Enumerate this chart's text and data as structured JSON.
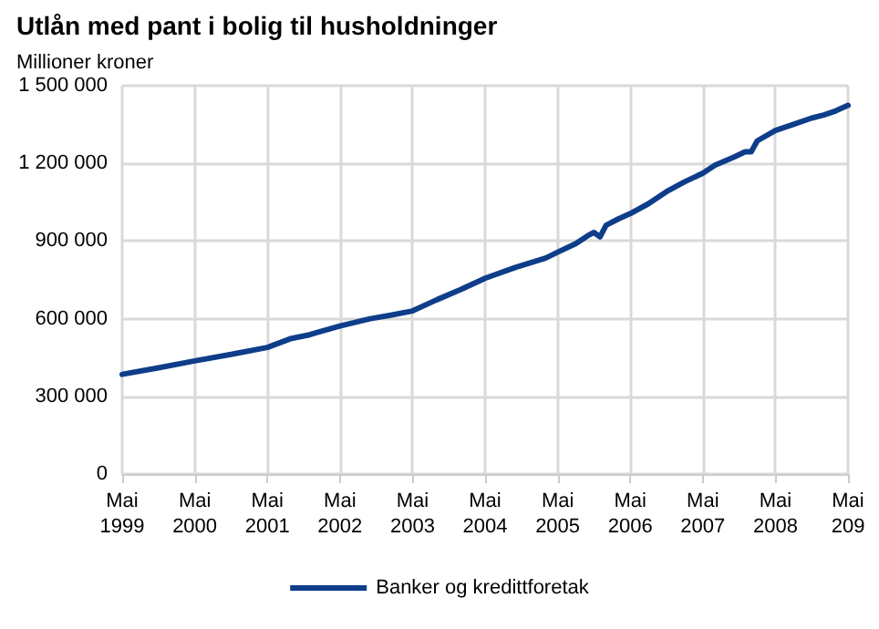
{
  "chart_data": {
    "type": "line",
    "title": "Utlån med pant i bolig til husholdninger",
    "ylabel": "Millioner kroner",
    "x": [
      "1999-05",
      "1999-11",
      "2000-05",
      "2000-11",
      "2001-05",
      "2001-09",
      "2001-12",
      "2002-01",
      "2002-05",
      "2002-10",
      "2003-01",
      "2003-05",
      "2003-09",
      "2004-01",
      "2004-05",
      "2004-10",
      "2005-03",
      "2005-05",
      "2005-08",
      "2005-10",
      "2005-11",
      "2005-12",
      "2006-01",
      "2006-03",
      "2006-05",
      "2006-08",
      "2006-11",
      "2007-02",
      "2007-05",
      "2007-07",
      "2007-10",
      "2007-12",
      "2008-01",
      "2008-02",
      "2008-05",
      "2008-08",
      "2008-11",
      "2009-01",
      "2009-03",
      "2009-05"
    ],
    "series": [
      {
        "name": "Banker og kredittforetak",
        "color": "#0e3d8a",
        "values": [
          385000,
          410000,
          437000,
          462000,
          489000,
          524000,
          538000,
          545000,
          572000,
          600000,
          612000,
          630000,
          673000,
          713000,
          756000,
          798000,
          834000,
          857000,
          890000,
          921000,
          933000,
          916000,
          961000,
          985000,
          1006000,
          1044000,
          1091000,
          1129000,
          1162000,
          1193000,
          1223000,
          1245000,
          1245000,
          1287000,
          1327000,
          1351000,
          1375000,
          1387000,
          1403000,
          1424000
        ]
      }
    ],
    "xlim": [
      "1999-05",
      "2009-05"
    ],
    "xticks": [
      {
        "value": "1999-05",
        "label": "Mai\n1999"
      },
      {
        "value": "2000-05",
        "label": "Mai\n2000"
      },
      {
        "value": "2001-05",
        "label": "Mai\n2001"
      },
      {
        "value": "2002-05",
        "label": "Mai\n2002"
      },
      {
        "value": "2003-05",
        "label": "Mai\n2003"
      },
      {
        "value": "2004-05",
        "label": "Mai\n2004"
      },
      {
        "value": "2005-05",
        "label": "Mai\n2005"
      },
      {
        "value": "2006-05",
        "label": "Mai\n2006"
      },
      {
        "value": "2007-05",
        "label": "Mai\n2007"
      },
      {
        "value": "2008-05",
        "label": "Mai\n2008"
      },
      {
        "value": "2009-05",
        "label": "Mai\n209"
      }
    ],
    "ylim": [
      0,
      1500000
    ],
    "yticks": [
      0,
      {
        "value": 300000,
        "label": "300 000"
      },
      {
        "value": 600000,
        "label": "600 000"
      },
      {
        "value": 900000,
        "label": "900 000"
      },
      {
        "value": 1200000,
        "label": "1 200 000"
      },
      {
        "value": 1500000,
        "label": "1 500 000"
      }
    ],
    "grid": true,
    "legend": "bottom",
    "marker": "none",
    "line_style": "solid"
  }
}
